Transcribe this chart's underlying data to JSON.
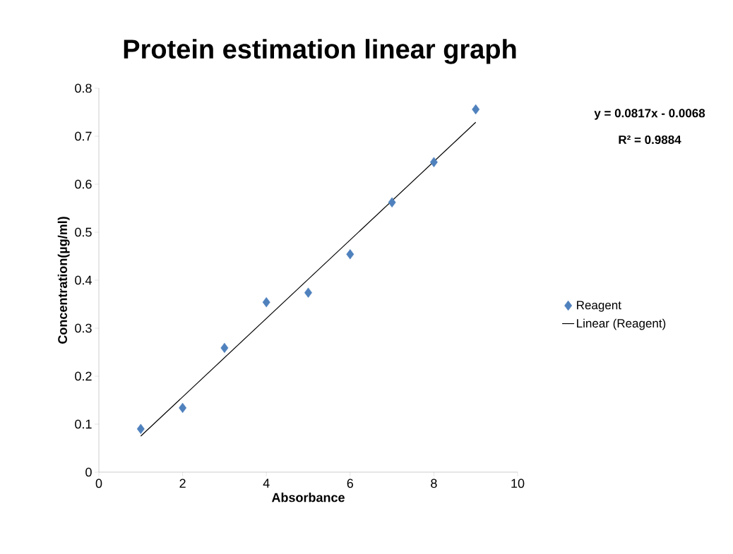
{
  "chart_data": {
    "type": "scatter",
    "title": "Protein estimation linear graph",
    "xlabel": "Absorbance",
    "ylabel": "Concentration(µg/ml)",
    "x": [
      1,
      2,
      3,
      4,
      5,
      6,
      7,
      8,
      9
    ],
    "series": [
      {
        "name": "Reagent",
        "color": "#4f81bd",
        "marker": "diamond",
        "values": [
          0.09,
          0.134,
          0.259,
          0.354,
          0.374,
          0.454,
          0.562,
          0.646,
          0.756
        ]
      },
      {
        "name": "Linear (Reagent)",
        "type": "line",
        "color": "#000000",
        "marker": "none",
        "line_style": "solid",
        "x": [
          1,
          9
        ],
        "values": [
          0.075,
          0.729
        ]
      }
    ],
    "xlim": [
      0,
      10
    ],
    "xticks": [
      0,
      2,
      4,
      6,
      8,
      10
    ],
    "ylim": [
      0,
      0.8
    ],
    "yticks": [
      0,
      {
        "value": 0.1,
        "label": "0.1"
      },
      {
        "value": 0.2,
        "label": "0.2"
      },
      {
        "value": 0.3,
        "label": "0.3"
      },
      {
        "value": 0.4,
        "label": "0.4"
      },
      {
        "value": 0.5,
        "label": "0.5"
      },
      {
        "value": 0.6,
        "label": "0.6"
      },
      {
        "value": 0.7,
        "label": "0.7"
      },
      {
        "value": 0.8,
        "label": "0.8"
      }
    ],
    "grid": false,
    "legend": "right",
    "annotations": [
      "y = 0.0817x - 0.0068",
      "R² = 0.9884"
    ]
  }
}
